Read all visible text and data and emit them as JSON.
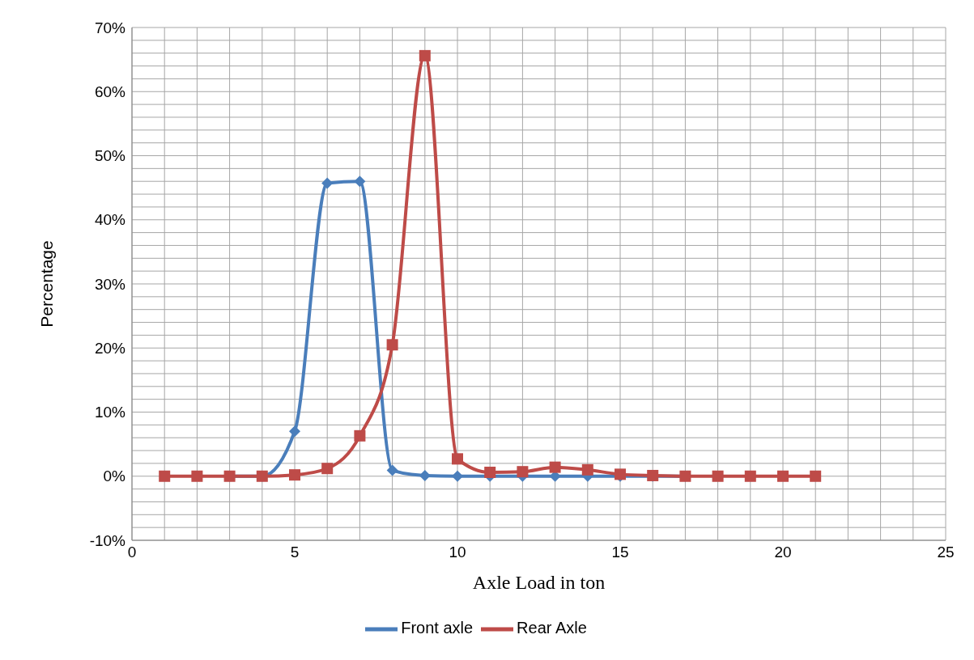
{
  "chart_data": {
    "type": "line",
    "xlabel": "Axle Load in ton",
    "ylabel": "Percentage",
    "x": [
      1,
      2,
      3,
      4,
      5,
      6,
      7,
      8,
      9,
      10,
      11,
      12,
      13,
      14,
      15,
      16,
      17,
      18,
      19,
      20,
      21
    ],
    "series": [
      {
        "name": "Front axle",
        "color": "#4a7ebb",
        "marker": "diamond",
        "values": [
          null,
          null,
          0,
          0,
          7.0,
          45.7,
          46.0,
          0.9,
          0.1,
          0,
          0,
          0,
          0,
          0,
          0,
          0,
          0,
          null,
          null,
          null,
          null
        ]
      },
      {
        "name": "Rear Axle",
        "color": "#be4b48",
        "marker": "square",
        "values": [
          0,
          0,
          0,
          0,
          0.2,
          1.2,
          6.3,
          20.5,
          65.6,
          2.7,
          0.6,
          0.7,
          1.4,
          1.0,
          0.3,
          0.1,
          0,
          0,
          0,
          0,
          0
        ]
      }
    ],
    "xlim": [
      0,
      25
    ],
    "xticks": [
      0,
      {
        "value": 1,
        "label": null
      },
      {
        "value": 2,
        "label": null
      },
      {
        "value": 3,
        "label": null
      },
      {
        "value": 4,
        "label": null
      },
      5,
      {
        "value": 6,
        "label": null
      },
      {
        "value": 7,
        "label": null
      },
      {
        "value": 8,
        "label": null
      },
      {
        "value": 9,
        "label": null
      },
      10,
      {
        "value": 11,
        "label": null
      },
      {
        "value": 12,
        "label": null
      },
      {
        "value": 13,
        "label": null
      },
      {
        "value": 14,
        "label": null
      },
      15,
      {
        "value": 16,
        "label": null
      },
      {
        "value": 17,
        "label": null
      },
      {
        "value": 18,
        "label": null
      },
      {
        "value": 19,
        "label": null
      },
      20,
      {
        "value": 21,
        "label": null
      },
      {
        "value": 22,
        "label": null
      },
      {
        "value": 23,
        "label": null
      },
      {
        "value": 24,
        "label": null
      },
      25
    ],
    "ylim": [
      -10,
      70
    ],
    "yticks": [
      {
        "value": -10,
        "label": "-10%"
      },
      {
        "value": -8,
        "label": null
      },
      {
        "value": -6,
        "label": null
      },
      {
        "value": -4,
        "label": null
      },
      {
        "value": -2,
        "label": null
      },
      {
        "value": 0,
        "label": "0%"
      },
      {
        "value": 2,
        "label": null
      },
      {
        "value": 4,
        "label": null
      },
      {
        "value": 6,
        "label": null
      },
      {
        "value": 8,
        "label": null
      },
      {
        "value": 10,
        "label": "10%"
      },
      {
        "value": 12,
        "label": null
      },
      {
        "value": 14,
        "label": null
      },
      {
        "value": 16,
        "label": null
      },
      {
        "value": 18,
        "label": null
      },
      {
        "value": 20,
        "label": "20%"
      },
      {
        "value": 22,
        "label": null
      },
      {
        "value": 24,
        "label": null
      },
      {
        "value": 26,
        "label": null
      },
      {
        "value": 28,
        "label": null
      },
      {
        "value": 30,
        "label": "30%"
      },
      {
        "value": 32,
        "label": null
      },
      {
        "value": 34,
        "label": null
      },
      {
        "value": 36,
        "label": null
      },
      {
        "value": 38,
        "label": null
      },
      {
        "value": 40,
        "label": "40%"
      },
      {
        "value": 42,
        "label": null
      },
      {
        "value": 44,
        "label": null
      },
      {
        "value": 46,
        "label": null
      },
      {
        "value": 48,
        "label": null
      },
      {
        "value": 50,
        "label": "50%"
      },
      {
        "value": 52,
        "label": null
      },
      {
        "value": 54,
        "label": null
      },
      {
        "value": 56,
        "label": null
      },
      {
        "value": 58,
        "label": null
      },
      {
        "value": 60,
        "label": "60%"
      },
      {
        "value": 62,
        "label": null
      },
      {
        "value": 64,
        "label": null
      },
      {
        "value": 66,
        "label": null
      },
      {
        "value": 68,
        "label": null
      },
      {
        "value": 70,
        "label": "70%"
      }
    ],
    "grid": true,
    "legend": "bottom",
    "line_style": "solid"
  }
}
